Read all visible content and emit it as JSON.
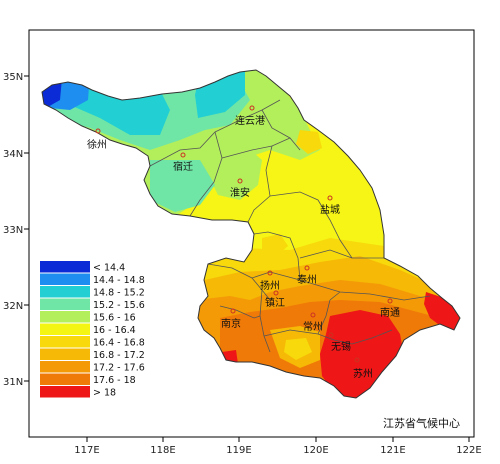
{
  "map": {
    "credit": "江苏省气候中心",
    "x_ticks": [
      "117E",
      "118E",
      "119E",
      "120E",
      "121E",
      "122E"
    ],
    "y_ticks": [
      "35N",
      "34N",
      "33N",
      "32N",
      "31N"
    ],
    "cities": [
      {
        "name": "连云港"
      },
      {
        "name": "徐州"
      },
      {
        "name": "宿迁"
      },
      {
        "name": "淮安"
      },
      {
        "name": "盐城"
      },
      {
        "name": "扬州"
      },
      {
        "name": "泰州"
      },
      {
        "name": "镇江"
      },
      {
        "name": "南京"
      },
      {
        "name": "南通"
      },
      {
        "name": "常州"
      },
      {
        "name": "无锡"
      },
      {
        "name": "苏州"
      }
    ],
    "legend": [
      {
        "label": "< 14.4",
        "color": "#0a2bd6"
      },
      {
        "label": "14.4 - 14.8",
        "color": "#1e8ef0"
      },
      {
        "label": "14.8 - 15.2",
        "color": "#22cfd2"
      },
      {
        "label": "15.2 - 15.6",
        "color": "#6fe6a6"
      },
      {
        "label": "15.6 - 16",
        "color": "#b3ef5b"
      },
      {
        "label": "16 - 16.4",
        "color": "#f5f514"
      },
      {
        "label": "16.4 - 16.8",
        "color": "#f7d90c"
      },
      {
        "label": "16.8 - 17.2",
        "color": "#f6b906"
      },
      {
        "label": "17.2 - 17.6",
        "color": "#f49a06"
      },
      {
        "label": "17.6 - 18",
        "color": "#f07a08"
      },
      {
        "label": "> 18",
        "color": "#ee1616"
      }
    ]
  }
}
